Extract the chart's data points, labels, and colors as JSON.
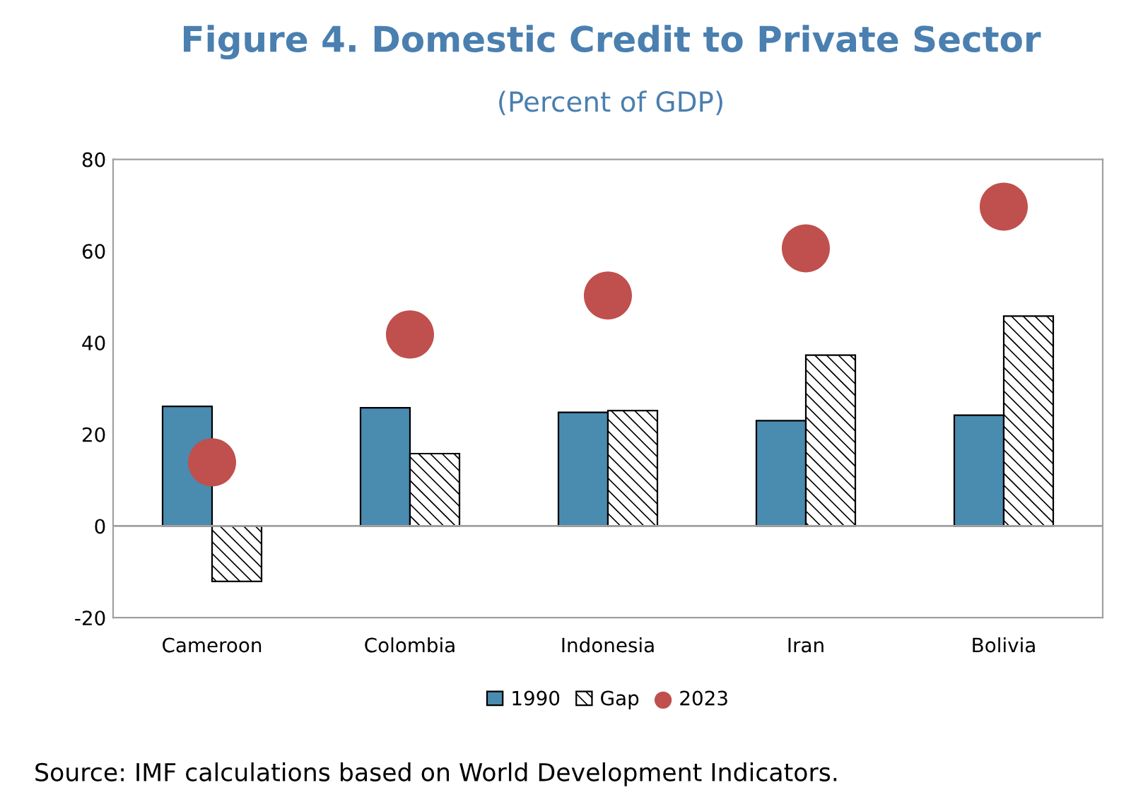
{
  "chart_data": {
    "type": "bar",
    "title": "Figure 4. Domestic Credit to Private Sector",
    "subtitle": "(Percent of GDP)",
    "categories": [
      "Cameroon",
      "Colombia",
      "Indonesia",
      "Iran",
      "Bolivia"
    ],
    "series": [
      {
        "name": "1990",
        "color": "#4a8bb0",
        "values": [
          26.1,
          25.8,
          24.8,
          23.0,
          24.2
        ]
      },
      {
        "name": "Gap",
        "color": "#000000",
        "values": [
          -12.1,
          15.8,
          25.2,
          37.3,
          45.8
        ]
      },
      {
        "name": "2023",
        "type": "scatter",
        "color": "#c0504d",
        "values": [
          13.9,
          41.8,
          50.3,
          60.6,
          69.7
        ]
      }
    ],
    "ylim": [
      -20,
      80
    ],
    "yticks": [
      -20,
      0,
      20,
      40,
      60,
      80
    ],
    "grid": false,
    "ref_lines": [
      {
        "axis": "y",
        "value": 0,
        "color": "#a0a0a0"
      }
    ],
    "legend": "bottom",
    "marker": "circle",
    "annotations": [
      "Source: IMF calculations based on World Development Indicators."
    ]
  }
}
